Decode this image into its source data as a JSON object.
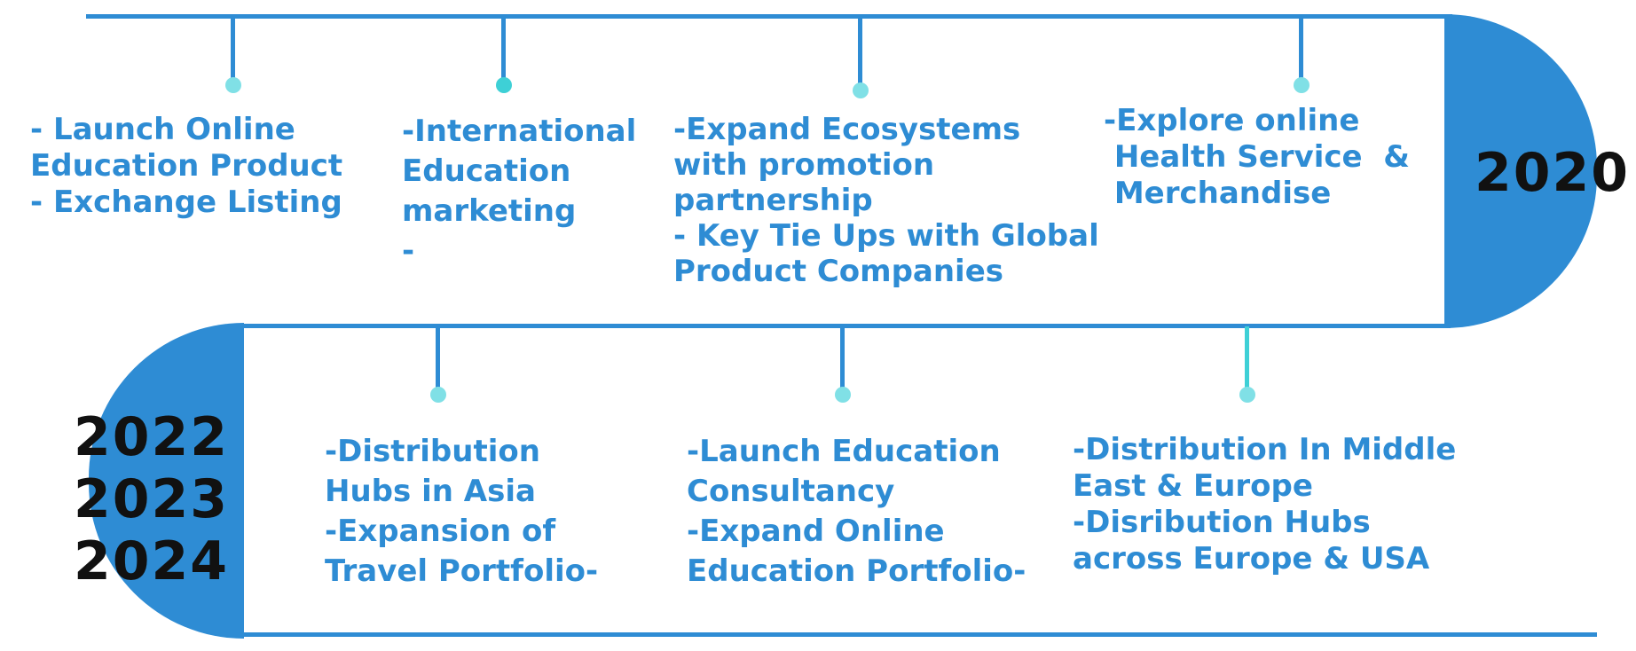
{
  "colors": {
    "line": "#2e8cd4",
    "text": "#2e8cd4",
    "dot_light": "#80e0e6",
    "dot_teal": "#3ed0d6",
    "year_text": "#111111"
  },
  "timeline": {
    "top_year": "2020",
    "bottom_years": "2022\n2023\n2024",
    "top_items": [
      {
        "text": "- Launch Online\nEducation Product\n- Exchange Listing"
      },
      {
        "text": "-International\nEducation\nmarketing\n-"
      },
      {
        "text": "-Expand Ecosystems\nwith promotion\npartnership\n- Key Tie Ups with Global\nProduct Companies"
      },
      {
        "text": "-Explore online\n Health Service  &\n Merchandise"
      }
    ],
    "bottom_items": [
      {
        "text": "-Distribution\nHubs in Asia\n-Expansion of\nTravel Portfolio-"
      },
      {
        "text": "-Launch Education\nConsultancy\n-Expand Online\nEducation Portfolio-"
      },
      {
        "text": "-Distribution In Middle\nEast & Europe\n-Disribution Hubs\nacross Europe & USA"
      }
    ]
  }
}
